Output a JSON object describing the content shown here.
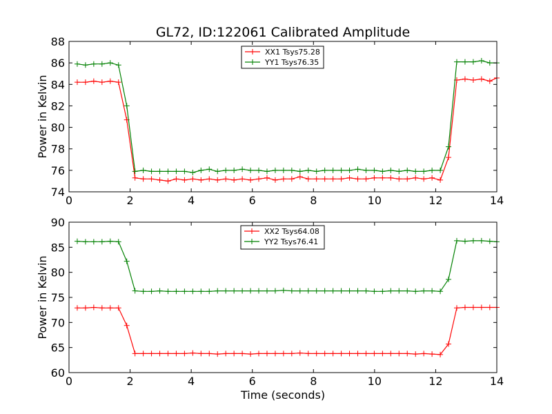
{
  "figure": {
    "title": "GL72, ID:122061 Calibrated Amplitude",
    "xlabel": "Time (seconds)"
  },
  "chart_data": [
    {
      "type": "line",
      "title": "GL72, ID:122061 Calibrated Amplitude",
      "xlabel": "",
      "ylabel": "Power in Kelvin",
      "xlim": [
        0,
        14
      ],
      "ylim": [
        74,
        88
      ],
      "xticks": [
        0,
        2,
        4,
        6,
        8,
        10,
        12,
        14
      ],
      "yticks": [
        74,
        76,
        78,
        80,
        82,
        84,
        86,
        88
      ],
      "grid": false,
      "legend_position": "top-center",
      "x": [
        0.27,
        0.54,
        0.81,
        1.08,
        1.35,
        1.62,
        1.89,
        2.16,
        2.43,
        2.7,
        2.97,
        3.24,
        3.51,
        3.78,
        4.05,
        4.32,
        4.59,
        4.86,
        5.13,
        5.4,
        5.67,
        5.94,
        6.21,
        6.48,
        6.75,
        7.02,
        7.29,
        7.56,
        7.83,
        8.1,
        8.37,
        8.64,
        8.91,
        9.18,
        9.45,
        9.72,
        9.99,
        10.26,
        10.53,
        10.8,
        11.07,
        11.34,
        11.61,
        11.88,
        12.15,
        12.42,
        12.69,
        12.96,
        13.23,
        13.5,
        13.77,
        14.0
      ],
      "series": [
        {
          "name": "XX1 Tsys75.28",
          "color": "#ff0000",
          "values": [
            84.2,
            84.2,
            84.3,
            84.2,
            84.3,
            84.2,
            80.7,
            75.3,
            75.2,
            75.2,
            75.1,
            75.0,
            75.2,
            75.1,
            75.2,
            75.1,
            75.2,
            75.1,
            75.2,
            75.1,
            75.2,
            75.1,
            75.2,
            75.3,
            75.1,
            75.2,
            75.2,
            75.4,
            75.2,
            75.2,
            75.2,
            75.2,
            75.2,
            75.3,
            75.2,
            75.2,
            75.3,
            75.3,
            75.3,
            75.2,
            75.2,
            75.3,
            75.2,
            75.3,
            75.1,
            77.2,
            84.4,
            84.5,
            84.4,
            84.5,
            84.3,
            84.6
          ]
        },
        {
          "name": "YY1 Tsys76.35",
          "color": "#008000",
          "values": [
            85.9,
            85.8,
            85.9,
            85.9,
            86.0,
            85.8,
            82.0,
            75.9,
            76.0,
            75.9,
            75.9,
            75.9,
            75.9,
            75.9,
            75.8,
            76.0,
            76.1,
            75.9,
            76.0,
            76.0,
            76.1,
            76.0,
            76.0,
            75.9,
            76.0,
            76.0,
            76.0,
            75.9,
            76.0,
            75.9,
            76.0,
            76.0,
            76.0,
            76.0,
            76.1,
            76.0,
            76.0,
            75.9,
            76.0,
            75.9,
            76.0,
            75.9,
            75.9,
            76.0,
            76.0,
            78.2,
            86.1,
            86.1,
            86.1,
            86.2,
            86.0,
            86.0
          ]
        }
      ]
    },
    {
      "type": "line",
      "title": "",
      "xlabel": "Time (seconds)",
      "ylabel": "Power in Kelvin",
      "xlim": [
        0,
        14
      ],
      "ylim": [
        60,
        90
      ],
      "xticks": [
        0,
        2,
        4,
        6,
        8,
        10,
        12,
        14
      ],
      "yticks": [
        60,
        65,
        70,
        75,
        80,
        85,
        90
      ],
      "grid": false,
      "legend_position": "top-center",
      "x": [
        0.27,
        0.54,
        0.81,
        1.08,
        1.35,
        1.62,
        1.89,
        2.16,
        2.43,
        2.7,
        2.97,
        3.24,
        3.51,
        3.78,
        4.05,
        4.32,
        4.59,
        4.86,
        5.13,
        5.4,
        5.67,
        5.94,
        6.21,
        6.48,
        6.75,
        7.02,
        7.29,
        7.56,
        7.83,
        8.1,
        8.37,
        8.64,
        8.91,
        9.18,
        9.45,
        9.72,
        9.99,
        10.26,
        10.53,
        10.8,
        11.07,
        11.34,
        11.61,
        11.88,
        12.15,
        12.42,
        12.69,
        12.96,
        13.23,
        13.5,
        13.77,
        14.0
      ],
      "series": [
        {
          "name": "XX2 Tsys64.08",
          "color": "#ff0000",
          "values": [
            72.9,
            72.9,
            73.0,
            72.9,
            72.9,
            72.9,
            69.4,
            63.8,
            63.8,
            63.8,
            63.8,
            63.8,
            63.8,
            63.8,
            63.9,
            63.8,
            63.8,
            63.7,
            63.8,
            63.8,
            63.8,
            63.7,
            63.8,
            63.8,
            63.8,
            63.8,
            63.8,
            63.9,
            63.8,
            63.8,
            63.8,
            63.8,
            63.8,
            63.8,
            63.8,
            63.8,
            63.8,
            63.8,
            63.8,
            63.8,
            63.8,
            63.7,
            63.8,
            63.7,
            63.6,
            65.7,
            72.9,
            73.0,
            73.0,
            73.0,
            73.0,
            73.0
          ]
        },
        {
          "name": "YY2 Tsys76.41",
          "color": "#008000",
          "values": [
            86.2,
            86.1,
            86.1,
            86.1,
            86.2,
            86.1,
            82.2,
            76.3,
            76.2,
            76.2,
            76.3,
            76.2,
            76.2,
            76.2,
            76.2,
            76.2,
            76.2,
            76.3,
            76.3,
            76.3,
            76.3,
            76.3,
            76.3,
            76.3,
            76.3,
            76.4,
            76.3,
            76.3,
            76.3,
            76.3,
            76.3,
            76.3,
            76.3,
            76.3,
            76.3,
            76.3,
            76.2,
            76.2,
            76.3,
            76.3,
            76.3,
            76.2,
            76.3,
            76.3,
            76.2,
            78.6,
            86.3,
            86.2,
            86.3,
            86.3,
            86.2,
            86.1
          ]
        }
      ]
    }
  ]
}
